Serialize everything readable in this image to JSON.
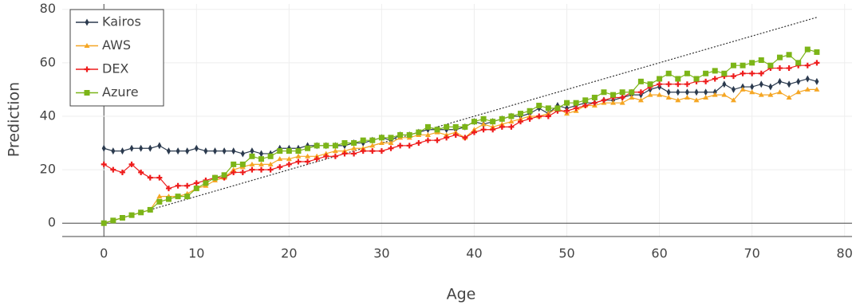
{
  "chart_data": {
    "type": "line",
    "x_label": "Age",
    "y_label": "Prediction",
    "xlim": [
      -4.5,
      80.8
    ],
    "ylim": [
      -5,
      82
    ],
    "xticks": [
      0,
      10,
      20,
      30,
      40,
      50,
      60,
      70,
      80
    ],
    "yticks": [
      0,
      20,
      40,
      60,
      80
    ],
    "grid": true,
    "legend": "upper-left",
    "x": [
      0,
      1,
      2,
      3,
      4,
      5,
      6,
      7,
      8,
      9,
      10,
      11,
      12,
      13,
      14,
      15,
      16,
      17,
      18,
      19,
      20,
      21,
      22,
      23,
      24,
      25,
      26,
      27,
      28,
      29,
      30,
      31,
      32,
      33,
      34,
      35,
      36,
      37,
      38,
      39,
      40,
      41,
      42,
      43,
      44,
      45,
      46,
      47,
      48,
      49,
      50,
      51,
      52,
      53,
      54,
      55,
      56,
      57,
      58,
      59,
      60,
      61,
      62,
      63,
      64,
      65,
      66,
      67,
      68,
      69,
      70,
      71,
      72,
      73,
      74,
      75,
      76,
      77
    ],
    "reference_line": {
      "x": [
        0,
        77
      ],
      "y": [
        0,
        77
      ],
      "color": "#333"
    },
    "series": [
      {
        "name": "Kairos",
        "color": "#2b3a4e",
        "marker": "diamond",
        "values": [
          28,
          27,
          27,
          28,
          28,
          28,
          29,
          27,
          27,
          27,
          28,
          27,
          27,
          27,
          27,
          26,
          27,
          26,
          26,
          28,
          28,
          28,
          29,
          29,
          29,
          29,
          29,
          30,
          30,
          31,
          32,
          31,
          33,
          33,
          34,
          35,
          35,
          35,
          35,
          36,
          38,
          37,
          38,
          39,
          40,
          40,
          41,
          43,
          41,
          44,
          43,
          44,
          45,
          45,
          46,
          46,
          47,
          48,
          48,
          50,
          51,
          49,
          49,
          49,
          49,
          49,
          49,
          52,
          50,
          51,
          51,
          52,
          51,
          53,
          52,
          53,
          54,
          53
        ]
      },
      {
        "name": "AWS",
        "color": "#f5a623",
        "marker": "triangle",
        "values": [
          0,
          1,
          2,
          3,
          4,
          5,
          10,
          10,
          10,
          11,
          13,
          14,
          16,
          17,
          20,
          21,
          22,
          22,
          22,
          24,
          24,
          25,
          25,
          25,
          26,
          27,
          27,
          28,
          28,
          29,
          30,
          30,
          32,
          32,
          33,
          33,
          34,
          33,
          34,
          32,
          35,
          37,
          36,
          37,
          38,
          39,
          40,
          40,
          41,
          43,
          41,
          42,
          44,
          44,
          45,
          45,
          45,
          47,
          46,
          48,
          48,
          47,
          46,
          47,
          46,
          47,
          48,
          48,
          46,
          50,
          49,
          48,
          48,
          49,
          47,
          49,
          50,
          50
        ]
      },
      {
        "name": "DEX",
        "color": "#ee1c1c",
        "marker": "cross",
        "values": [
          22,
          20,
          19,
          22,
          19,
          17,
          17,
          13,
          14,
          14,
          15,
          16,
          17,
          17,
          19,
          19,
          20,
          20,
          20,
          21,
          22,
          23,
          23,
          24,
          25,
          25,
          26,
          26,
          27,
          27,
          27,
          28,
          29,
          29,
          30,
          31,
          31,
          32,
          33,
          32,
          34,
          35,
          35,
          36,
          36,
          38,
          39,
          40,
          40,
          42,
          42,
          43,
          44,
          45,
          46,
          47,
          47,
          49,
          49,
          51,
          52,
          52,
          52,
          52,
          53,
          53,
          54,
          55,
          55,
          56,
          56,
          56,
          58,
          58,
          58,
          59,
          59,
          60
        ]
      },
      {
        "name": "Azure",
        "color": "#7cb518",
        "marker": "square",
        "values": [
          0,
          1,
          2,
          3,
          4,
          5,
          8,
          9,
          10,
          10,
          13,
          15,
          17,
          18,
          22,
          22,
          25,
          24,
          25,
          27,
          27,
          27,
          28,
          29,
          29,
          29,
          30,
          30,
          31,
          31,
          32,
          32,
          33,
          33,
          34,
          36,
          35,
          36,
          36,
          36,
          38,
          39,
          38,
          39,
          40,
          41,
          42,
          44,
          43,
          43,
          45,
          45,
          46,
          47,
          49,
          48,
          49,
          49,
          53,
          52,
          54,
          56,
          54,
          56,
          54,
          56,
          57,
          56,
          59,
          59,
          60,
          61,
          59,
          62,
          63,
          60,
          65,
          64
        ]
      }
    ]
  }
}
